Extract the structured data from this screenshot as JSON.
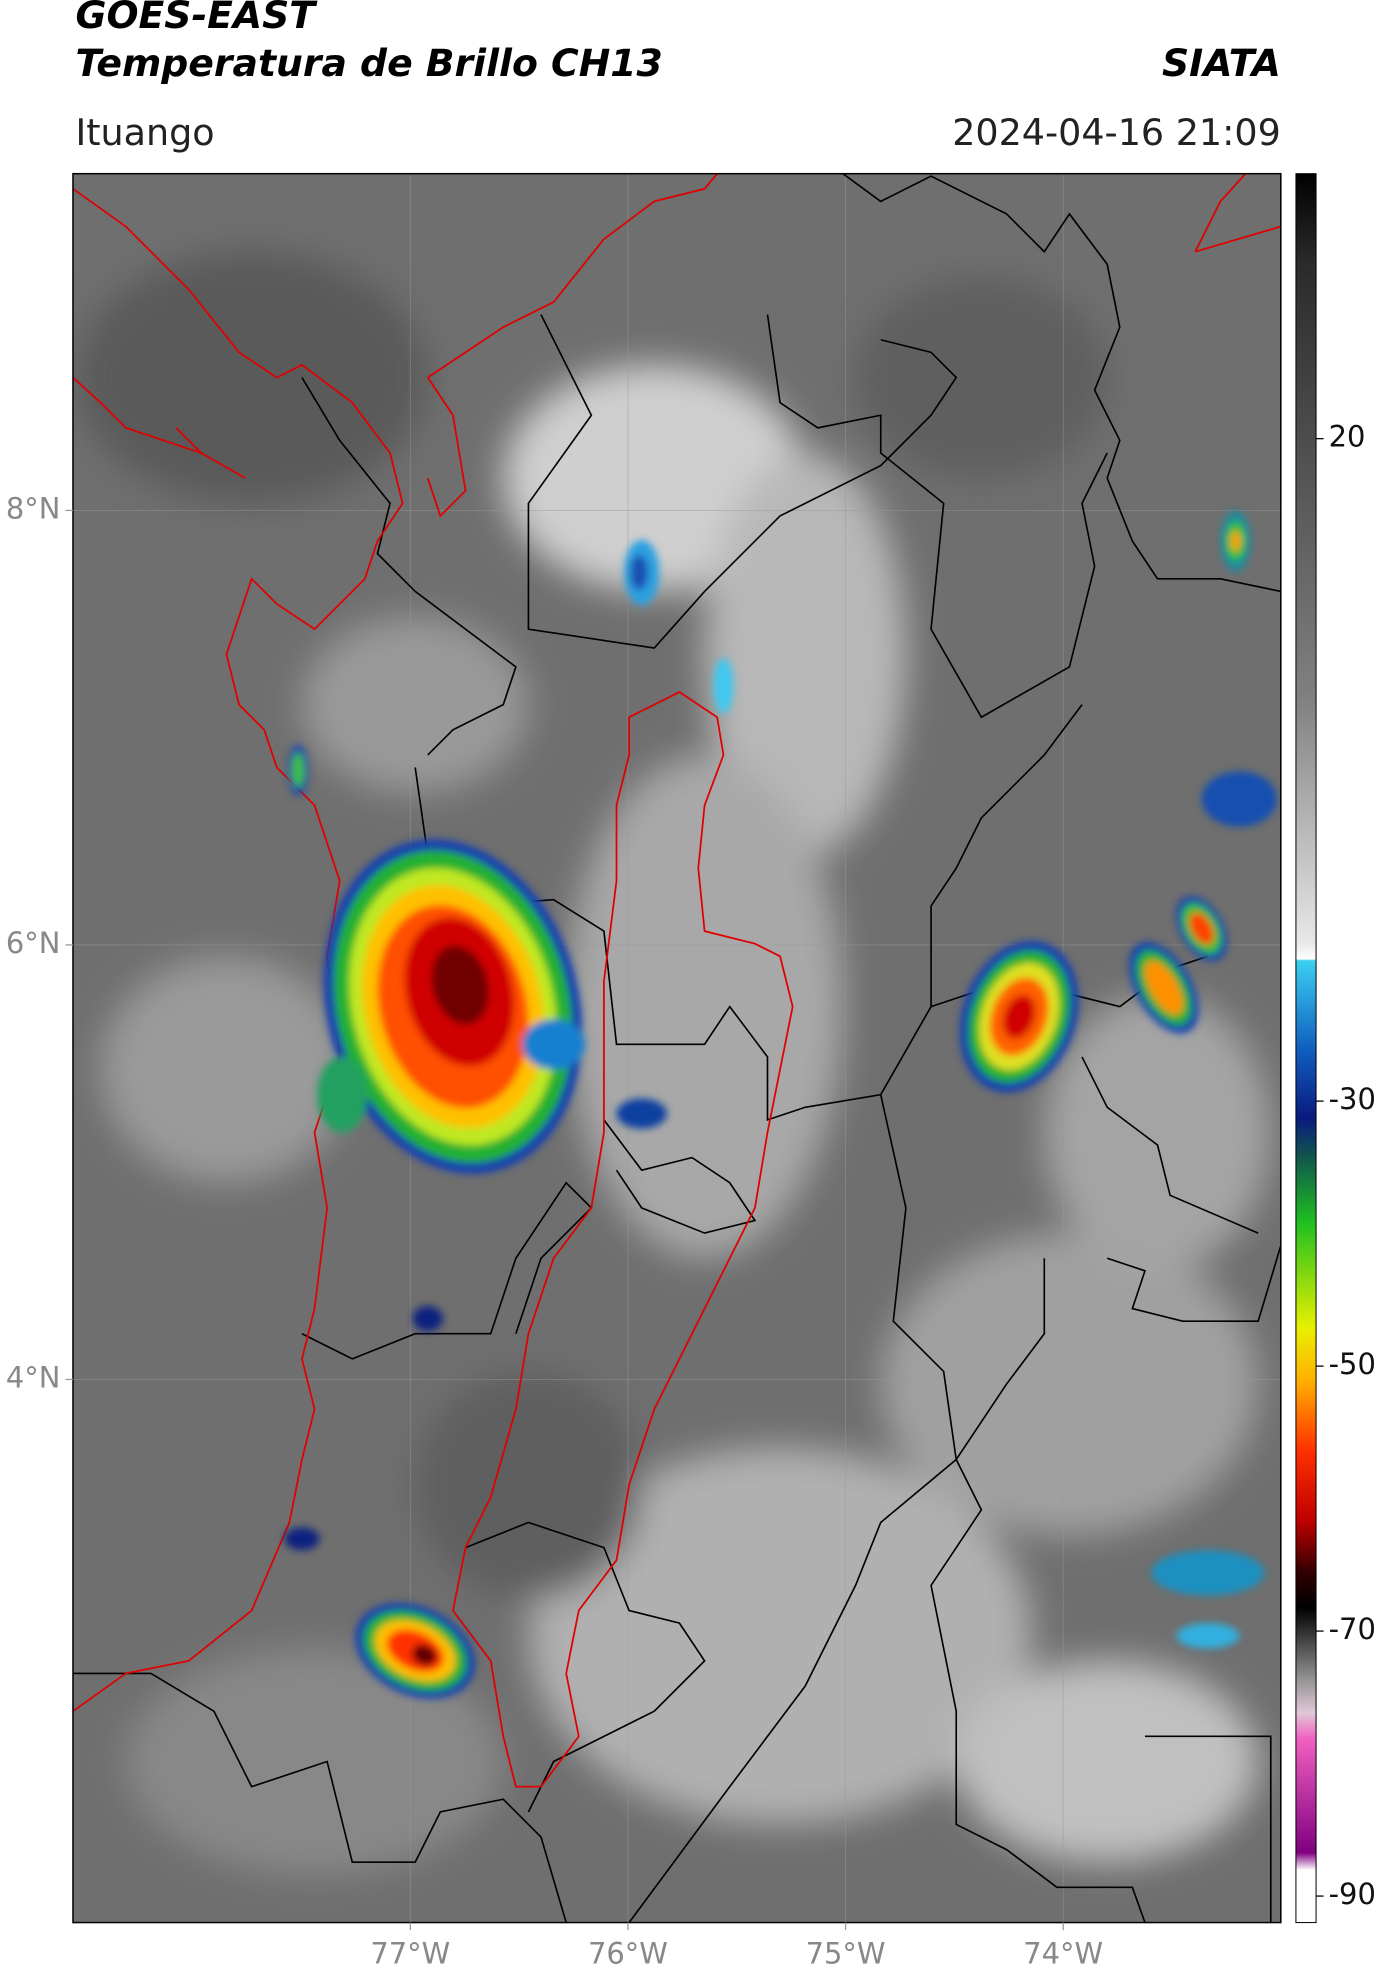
{
  "header": {
    "title_line1": "GOES-EAST",
    "title_line2": "Temperatura de Brillo CH13",
    "organization": "SIATA",
    "region": "Ituango",
    "timestamp": "2024-04-16 21:09"
  },
  "map": {
    "xlim": [
      -78.55,
      -73.0
    ],
    "ylim": [
      1.5,
      9.55
    ],
    "xticks": [
      {
        "value": -77,
        "label": "77°W"
      },
      {
        "value": -76,
        "label": "76°W"
      },
      {
        "value": -75,
        "label": "75°W"
      },
      {
        "value": -74,
        "label": "74°W"
      }
    ],
    "yticks": [
      {
        "value": 8,
        "label": "8°N"
      },
      {
        "value": 6,
        "label": "6°N"
      },
      {
        "value": 4,
        "label": "4°N"
      }
    ],
    "grid": true
  },
  "colorbar": {
    "lim": [
      -92,
      40
    ],
    "ticks": [
      20,
      -30,
      -50,
      -70,
      -90
    ]
  }
}
